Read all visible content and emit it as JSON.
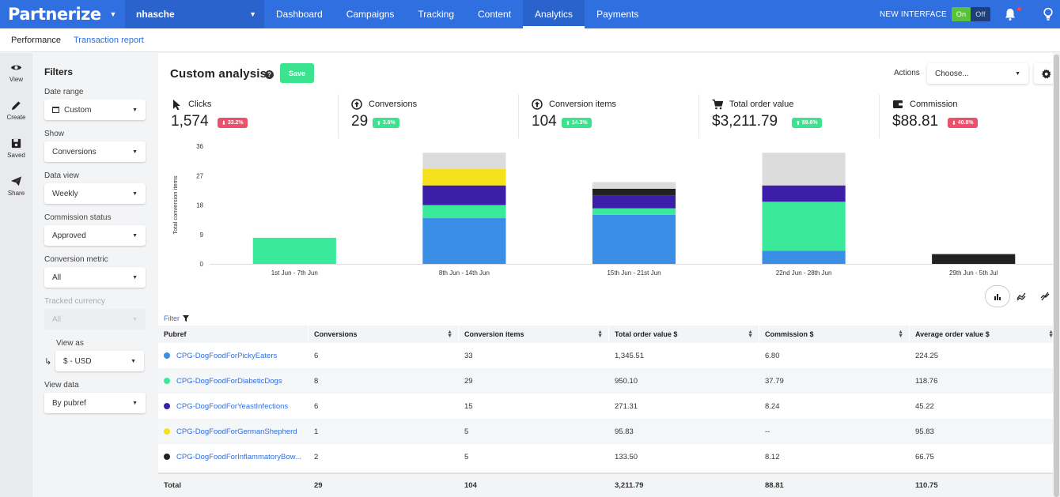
{
  "nav": {
    "logo": "Partnerize",
    "account": "nhasche",
    "tabs": [
      {
        "label": "Dashboard",
        "active": false
      },
      {
        "label": "Campaigns",
        "active": false
      },
      {
        "label": "Tracking",
        "active": false
      },
      {
        "label": "Content",
        "active": false
      },
      {
        "label": "Analytics",
        "active": true
      },
      {
        "label": "Payments",
        "active": false
      }
    ],
    "new_interface_label": "NEW INTERFACE",
    "toggle_on": "On",
    "toggle_off": "Off"
  },
  "subnav": {
    "performance": "Performance",
    "transaction_report": "Transaction report"
  },
  "rail": [
    {
      "label": "View",
      "icon": "eye-icon"
    },
    {
      "label": "Create",
      "icon": "pencil-icon"
    },
    {
      "label": "Saved",
      "icon": "floppy-icon"
    },
    {
      "label": "Share",
      "icon": "send-icon"
    }
  ],
  "filters": {
    "heading": "Filters",
    "date_range_label": "Date range",
    "date_range_value": "Custom",
    "show_label": "Show",
    "show_value": "Conversions",
    "data_view_label": "Data view",
    "data_view_value": "Weekly",
    "commission_status_label": "Commission status",
    "commission_status_value": "Approved",
    "conversion_metric_label": "Conversion metric",
    "conversion_metric_value": "All",
    "tracked_currency_label": "Tracked currency",
    "tracked_currency_value": "All",
    "view_as_label": "View as",
    "view_as_value": "$ - USD",
    "view_data_label": "View data",
    "view_data_value": "By pubref"
  },
  "header": {
    "title": "Custom analysis",
    "save_label": "Save",
    "actions_label": "Actions",
    "actions_value": "Choose..."
  },
  "kpis": [
    {
      "name": "Clicks",
      "value": "1,574",
      "change": "33.2%",
      "dir": "down",
      "icon": "cursor-icon"
    },
    {
      "name": "Conversions",
      "value": "29",
      "change": "3.6%",
      "dir": "up",
      "icon": "arrow-circle-icon"
    },
    {
      "name": "Conversion items",
      "value": "104",
      "change": "14.3%",
      "dir": "up",
      "icon": "arrow-circle-icon"
    },
    {
      "name": "Total order value",
      "value": "$3,211.79",
      "change": "89.6%",
      "dir": "up",
      "icon": "cart-icon"
    },
    {
      "name": "Commission",
      "value": "$88.81",
      "change": "40.8%",
      "dir": "down",
      "icon": "wallet-icon"
    }
  ],
  "chart_data": {
    "type": "bar",
    "stacked": true,
    "ylabel": "Total conversion items",
    "ylim": [
      0,
      36
    ],
    "yticks": [
      0,
      9,
      18,
      27,
      36
    ],
    "categories": [
      "1st Jun - 7th Jun",
      "8th Jun - 14th Jun",
      "15th Jun - 21st Jun",
      "22nd Jun - 28th Jun",
      "29th Jun - 5th Jul"
    ],
    "series": [
      {
        "color": "#3a8ee6",
        "values": [
          0,
          14,
          15,
          4,
          0
        ]
      },
      {
        "color": "#3be99a",
        "values": [
          8,
          4,
          2,
          15,
          0
        ]
      },
      {
        "color": "#3c1ea8",
        "values": [
          0,
          6,
          4,
          5,
          0
        ]
      },
      {
        "color": "#f5e21c",
        "values": [
          0,
          5,
          0,
          0,
          0
        ]
      },
      {
        "color": "#222222",
        "values": [
          0,
          0,
          2,
          0,
          3
        ]
      },
      {
        "color": "#dcdcdc",
        "values": [
          0,
          5,
          2,
          10,
          0
        ]
      }
    ]
  },
  "table": {
    "filter_label": "Filter",
    "columns": [
      "Pubref",
      "Conversions",
      "Conversion items",
      "Total order value $",
      "Commission $",
      "Average order value $"
    ],
    "rows": [
      {
        "color": "#3a8ee6",
        "pubref": "CPG-DogFoodForPickyEaters",
        "conversions": "6",
        "items": "33",
        "tov": "1,345.51",
        "commission": "6.80",
        "aov": "224.25"
      },
      {
        "color": "#3be99a",
        "pubref": "CPG-DogFoodForDiabeticDogs",
        "conversions": "8",
        "items": "29",
        "tov": "950.10",
        "commission": "37.79",
        "aov": "118.76"
      },
      {
        "color": "#3c1ea8",
        "pubref": "CPG-DogFoodForYeastInfections",
        "conversions": "6",
        "items": "15",
        "tov": "271.31",
        "commission": "8.24",
        "aov": "45.22"
      },
      {
        "color": "#f5e21c",
        "pubref": "CPG-DogFoodForGermanShepherd",
        "conversions": "1",
        "items": "5",
        "tov": "95.83",
        "commission": "--",
        "aov": "95.83"
      },
      {
        "color": "#222222",
        "pubref": "CPG-DogFoodForInflammatoryBow...",
        "conversions": "2",
        "items": "5",
        "tov": "133.50",
        "commission": "8.12",
        "aov": "66.75"
      }
    ],
    "total": {
      "label": "Total",
      "conversions": "29",
      "items": "104",
      "tov": "3,211.79",
      "commission": "88.81",
      "aov": "110.75"
    }
  }
}
